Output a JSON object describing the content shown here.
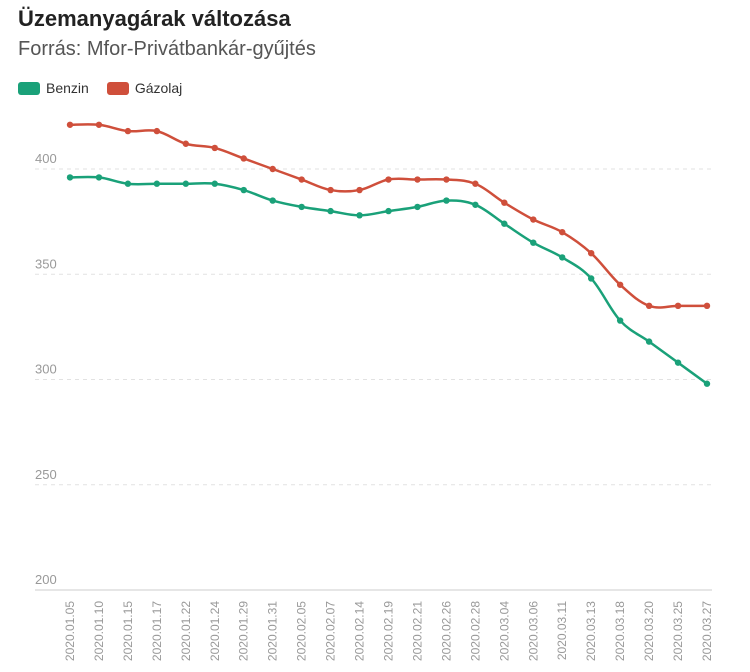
{
  "chart_data": {
    "type": "line",
    "title": "Üzemanyagárak változása",
    "subtitle": "Forrás: Mfor-Privátbankár-gyűjtés",
    "xlabel": "",
    "ylabel": "",
    "ylim": [
      200,
      430
    ],
    "yticks": [
      200,
      250,
      300,
      350,
      400
    ],
    "grid": true,
    "legend_position": "top-left",
    "categories": [
      "2020.01.05",
      "2020.01.10",
      "2020.01.15",
      "2020.01.17",
      "2020.01.22",
      "2020.01.24",
      "2020.01.29",
      "2020.01.31",
      "2020.02.05",
      "2020.02.07",
      "2020.02.14",
      "2020.02.19",
      "2020.02.21",
      "2020.02.26",
      "2020.02.28",
      "2020.03.04",
      "2020.03.06",
      "2020.03.11",
      "2020.03.13",
      "2020.03.18",
      "2020.03.20",
      "2020.03.25",
      "2020.03.27"
    ],
    "series": [
      {
        "name": "Benzin",
        "color": "#1aa179",
        "values": [
          396,
          396,
          393,
          393,
          393,
          393,
          390,
          385,
          382,
          380,
          378,
          380,
          382,
          385,
          383,
          374,
          365,
          358,
          348,
          328,
          318,
          308,
          298
        ]
      },
      {
        "name": "Gázolaj",
        "color": "#cf4f3b",
        "values": [
          421,
          421,
          418,
          418,
          412,
          410,
          405,
          400,
          395,
          390,
          390,
          395,
          395,
          395,
          393,
          384,
          376,
          370,
          360,
          345,
          335,
          335,
          335
        ]
      }
    ]
  }
}
